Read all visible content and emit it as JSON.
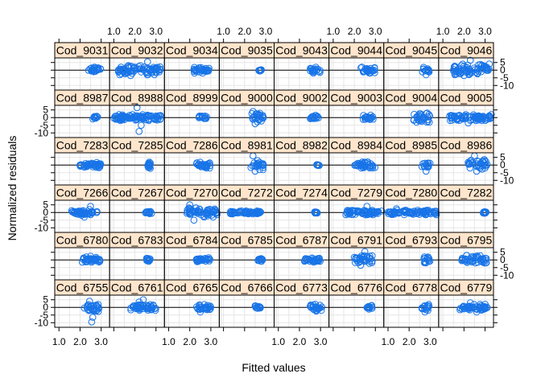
{
  "chart_data": {
    "type": "scatter",
    "title": "",
    "xlabel": "Fitted values",
    "ylabel": "Normalized residuals",
    "xlim": [
      0.8,
      3.4
    ],
    "ylim": [
      -13,
      8
    ],
    "x_ticks": [
      1.0,
      2.0,
      3.0
    ],
    "x_tick_labels": [
      "1.0",
      "2.0",
      "3.0"
    ],
    "y_ticks": [
      5,
      0,
      -5,
      -10
    ],
    "y_tick_labels": [
      "5",
      "0",
      "-5",
      "-10"
    ],
    "grid": true,
    "reference_line": 0,
    "layout": {
      "columns": 8,
      "rows": 6
    },
    "colors": {
      "points": "#1874e8",
      "strip": "#ffe5cc",
      "grid": "#e6e6e6",
      "frame": "#000000"
    },
    "panels": [
      {
        "label": "Cod_6755",
        "x_range": [
          2.2,
          2.9
        ],
        "residuals": [
          -3,
          3
        ],
        "extra_points": [
          [
            2.55,
            -9.5
          ],
          [
            2.6,
            -6.5
          ],
          [
            2.45,
            4
          ]
        ]
      },
      {
        "label": "Cod_6761",
        "x_range": [
          1.8,
          3.0
        ],
        "residuals": [
          -2,
          2
        ],
        "extra_points": [
          [
            2.4,
            5
          ],
          [
            2.2,
            3.5
          ]
        ]
      },
      {
        "label": "Cod_6765",
        "x_range": [
          2.3,
          3.0
        ],
        "residuals": [
          -2,
          2
        ],
        "extra_points": [
          [
            2.5,
            -3
          ]
        ]
      },
      {
        "label": "Cod_6766",
        "x_range": [
          2.5,
          2.75
        ],
        "residuals": [
          -1,
          1
        ],
        "extra_points": []
      },
      {
        "label": "Cod_6773",
        "x_range": [
          2.5,
          3.1
        ],
        "residuals": [
          -2,
          2
        ],
        "extra_points": [
          [
            2.8,
            -2.5
          ]
        ]
      },
      {
        "label": "Cod_6776",
        "x_range": [
          2.6,
          2.85
        ],
        "residuals": [
          -1.5,
          1.5
        ],
        "extra_points": []
      },
      {
        "label": "Cod_6778",
        "x_range": [
          2.6,
          2.95
        ],
        "residuals": [
          -2,
          2
        ],
        "extra_points": [
          [
            2.75,
            -3
          ]
        ]
      },
      {
        "label": "Cod_6779",
        "x_range": [
          1.8,
          3.1
        ],
        "residuals": [
          -2,
          2
        ],
        "extra_points": [
          [
            2.6,
            -3
          ],
          [
            2.3,
            3
          ]
        ]
      },
      {
        "label": "Cod_6780",
        "x_range": [
          2.1,
          3.0
        ],
        "residuals": [
          -1.5,
          2
        ],
        "extra_points": [
          [
            2.5,
            2.5
          ]
        ]
      },
      {
        "label": "Cod_6783",
        "x_range": [
          2.55,
          2.75
        ],
        "residuals": [
          -1,
          1
        ],
        "extra_points": []
      },
      {
        "label": "Cod_6784",
        "x_range": [
          2.3,
          3.0
        ],
        "residuals": [
          -1.5,
          1.5
        ],
        "extra_points": []
      },
      {
        "label": "Cod_6785",
        "x_range": [
          2.6,
          2.85
        ],
        "residuals": [
          -1,
          1
        ],
        "extra_points": []
      },
      {
        "label": "Cod_6787",
        "x_range": [
          2.2,
          3.0
        ],
        "residuals": [
          -1.5,
          1.5
        ],
        "extra_points": []
      },
      {
        "label": "Cod_6791",
        "x_range": [
          2.0,
          2.9
        ],
        "residuals": [
          -3,
          4
        ],
        "extra_points": [
          [
            2.5,
            5.5
          ],
          [
            2.3,
            -3.5
          ]
        ]
      },
      {
        "label": "Cod_6793",
        "x_range": [
          2.7,
          3.0
        ],
        "residuals": [
          -2,
          2
        ],
        "extra_points": []
      },
      {
        "label": "Cod_6795",
        "x_range": [
          1.9,
          3.1
        ],
        "residuals": [
          -2,
          3
        ],
        "extra_points": [
          [
            1.9,
            -0.5
          ]
        ]
      },
      {
        "label": "Cod_7266",
        "x_range": [
          1.6,
          2.8
        ],
        "residuals": [
          -2,
          2
        ],
        "extra_points": [
          [
            2.5,
            4
          ],
          [
            2.2,
            -3
          ]
        ]
      },
      {
        "label": "Cod_7267",
        "x_range": [
          2.5,
          2.8
        ],
        "residuals": [
          -1,
          1
        ],
        "extra_points": []
      },
      {
        "label": "Cod_7270",
        "x_range": [
          1.8,
          3.3
        ],
        "residuals": [
          -3,
          3
        ],
        "extra_points": [
          [
            2.2,
            -5
          ],
          [
            2.0,
            5
          ]
        ]
      },
      {
        "label": "Cod_7272",
        "x_range": [
          1.3,
          2.8
        ],
        "residuals": [
          -1,
          1
        ],
        "extra_points": []
      },
      {
        "label": "Cod_7274",
        "x_range": [
          2.7,
          2.85
        ],
        "residuals": [
          -0.5,
          0.5
        ],
        "extra_points": []
      },
      {
        "label": "Cod_7279",
        "x_range": [
          1.6,
          3.3
        ],
        "residuals": [
          -1.5,
          2
        ],
        "extra_points": [
          [
            2.6,
            4
          ]
        ]
      },
      {
        "label": "Cod_7280",
        "x_range": [
          1.0,
          3.3
        ],
        "residuals": [
          -1.5,
          1.5
        ],
        "extra_points": [
          [
            1.4,
            2.5
          ]
        ]
      },
      {
        "label": "Cod_7282",
        "x_range": [
          2.9,
          3.05
        ],
        "residuals": [
          -0.5,
          0.5
        ],
        "extra_points": []
      },
      {
        "label": "Cod_7283",
        "x_range": [
          1.9,
          3.0
        ],
        "residuals": [
          -2,
          2
        ],
        "extra_points": []
      },
      {
        "label": "Cod_7285",
        "x_range": [
          2.6,
          2.75
        ],
        "residuals": [
          -2.5,
          2.5
        ],
        "extra_points": []
      },
      {
        "label": "Cod_7286",
        "x_range": [
          2.3,
          3.0
        ],
        "residuals": [
          -2,
          2
        ],
        "extra_points": []
      },
      {
        "label": "Cod_8981",
        "x_range": [
          2.3,
          2.9
        ],
        "residuals": [
          -3,
          4
        ],
        "extra_points": [
          [
            2.4,
            6
          ],
          [
            2.5,
            -4
          ]
        ]
      },
      {
        "label": "Cod_8982",
        "x_range": [
          2.8,
          2.95
        ],
        "residuals": [
          -0.5,
          0.5
        ],
        "extra_points": []
      },
      {
        "label": "Cod_8984",
        "x_range": [
          2.0,
          3.0
        ],
        "residuals": [
          -2,
          2
        ],
        "extra_points": []
      },
      {
        "label": "Cod_8985",
        "x_range": [
          2.6,
          3.0
        ],
        "residuals": [
          -2,
          2
        ],
        "extra_points": [
          [
            2.8,
            -4
          ]
        ]
      },
      {
        "label": "Cod_8986",
        "x_range": [
          2.2,
          3.1
        ],
        "residuals": [
          -3,
          5
        ],
        "extra_points": [
          [
            2.5,
            6
          ],
          [
            2.6,
            -4
          ]
        ]
      },
      {
        "label": "Cod_8987",
        "x_range": [
          2.6,
          2.85
        ],
        "residuals": [
          -1,
          1
        ],
        "extra_points": []
      },
      {
        "label": "Cod_8988",
        "x_range": [
          1.0,
          3.3
        ],
        "residuals": [
          -2,
          2
        ],
        "extra_points": [
          [
            2.1,
            6.5
          ],
          [
            2.2,
            -9
          ],
          [
            2.3,
            -5
          ]
        ]
      },
      {
        "label": "Cod_8999",
        "x_range": [
          2.4,
          2.8
        ],
        "residuals": [
          -2,
          1
        ],
        "extra_points": []
      },
      {
        "label": "Cod_9000",
        "x_range": [
          2.3,
          2.9
        ],
        "residuals": [
          -3,
          3
        ],
        "extra_points": [
          [
            2.4,
            4
          ],
          [
            2.5,
            -4
          ]
        ]
      },
      {
        "label": "Cod_9002",
        "x_range": [
          2.5,
          2.9
        ],
        "residuals": [
          -1.5,
          1.5
        ],
        "extra_points": []
      },
      {
        "label": "Cod_9003",
        "x_range": [
          2.4,
          2.9
        ],
        "residuals": [
          -2,
          2
        ],
        "extra_points": []
      },
      {
        "label": "Cod_9004",
        "x_range": [
          2.2,
          3.0
        ],
        "residuals": [
          -3,
          3
        ],
        "extra_points": []
      },
      {
        "label": "Cod_9005",
        "x_range": [
          1.3,
          3.3
        ],
        "residuals": [
          -2,
          2
        ],
        "extra_points": [
          [
            2.2,
            -3.5
          ]
        ]
      },
      {
        "label": "Cod_9031",
        "x_range": [
          2.4,
          3.0
        ],
        "residuals": [
          -2,
          2
        ],
        "extra_points": []
      },
      {
        "label": "Cod_9032",
        "x_range": [
          1.2,
          3.2
        ],
        "residuals": [
          -3,
          3
        ],
        "extra_points": [
          [
            2.6,
            5.5
          ],
          [
            1.8,
            -3.5
          ]
        ]
      },
      {
        "label": "Cod_9034",
        "x_range": [
          2.2,
          3.0
        ],
        "residuals": [
          -2,
          2
        ],
        "extra_points": []
      },
      {
        "label": "Cod_9035",
        "x_range": [
          2.65,
          2.8
        ],
        "residuals": [
          -0.5,
          0.5
        ],
        "extra_points": []
      },
      {
        "label": "Cod_9043",
        "x_range": [
          2.5,
          3.0
        ],
        "residuals": [
          -2,
          2
        ],
        "extra_points": []
      },
      {
        "label": "Cod_9044",
        "x_range": [
          2.3,
          3.0
        ],
        "residuals": [
          -2,
          2
        ],
        "extra_points": []
      },
      {
        "label": "Cod_9045",
        "x_range": [
          2.6,
          2.95
        ],
        "residuals": [
          -2,
          2
        ],
        "extra_points": [
          [
            2.8,
            -3
          ]
        ]
      },
      {
        "label": "Cod_9046",
        "x_range": [
          1.5,
          3.2
        ],
        "residuals": [
          -3,
          5
        ],
        "extra_points": [
          [
            2.3,
            6.5
          ],
          [
            2.0,
            -3.5
          ],
          [
            3.1,
            1
          ]
        ]
      }
    ]
  }
}
